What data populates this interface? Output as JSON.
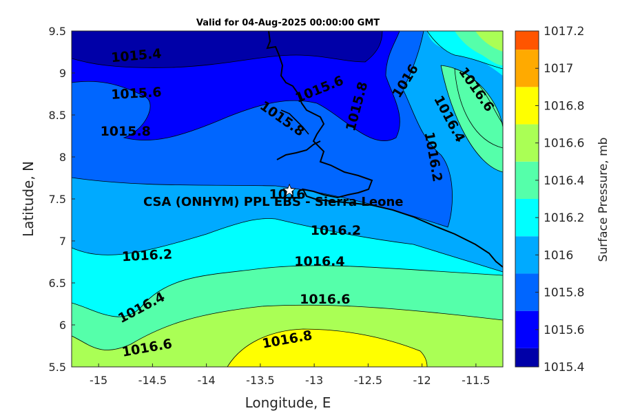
{
  "title": "Valid for 04-Aug-2025 00:00:00 GMT",
  "site_label": "CSA (ONHYM) PPL EBS  - Sierra Leone",
  "chart_data": {
    "type": "heatmap",
    "subtype": "filled-contour-map",
    "xlabel": "Longitude, E",
    "ylabel": "Latitude, N",
    "xlim": [
      -15.25,
      -11.25
    ],
    "ylim": [
      5.5,
      9.5
    ],
    "xticks": [
      -15,
      -14.5,
      -14,
      -13.5,
      -13,
      -12.5,
      -12,
      -11.5
    ],
    "yticks": [
      5.5,
      6,
      6.5,
      7,
      7.5,
      8,
      8.5,
      9,
      9.5
    ],
    "colorbar": {
      "label": "Surface Pressure, mb",
      "ticks": [
        1015.4,
        1015.6,
        1015.8,
        1016,
        1016.2,
        1016.4,
        1016.6,
        1016.8,
        1017,
        1017.2
      ],
      "levels": [
        {
          "min": 1015.4,
          "max": 1015.5,
          "color": "#0000a8"
        },
        {
          "min": 1015.5,
          "max": 1015.7,
          "color": "#0000ff"
        },
        {
          "min": 1015.7,
          "max": 1015.9,
          "color": "#0066ff"
        },
        {
          "min": 1015.9,
          "max": 1016.1,
          "color": "#00aaff"
        },
        {
          "min": 1016.1,
          "max": 1016.3,
          "color": "#00ffff"
        },
        {
          "min": 1016.3,
          "max": 1016.5,
          "color": "#55ffaa"
        },
        {
          "min": 1016.5,
          "max": 1016.7,
          "color": "#aaff55"
        },
        {
          "min": 1016.7,
          "max": 1016.9,
          "color": "#ffff00"
        },
        {
          "min": 1016.9,
          "max": 1017.1,
          "color": "#ffaa00"
        },
        {
          "min": 1017.1,
          "max": 1017.2,
          "color": "#ff5500"
        }
      ]
    },
    "contour_labels": [
      {
        "text": "1015.4",
        "lon": -14.65,
        "lat": 9.2,
        "angle": -5
      },
      {
        "text": "1015.6",
        "lon": -14.65,
        "lat": 8.75,
        "angle": -3
      },
      {
        "text": "1015.8",
        "lon": -14.75,
        "lat": 8.3,
        "angle": 0
      },
      {
        "text": "1015.6",
        "lon": -12.95,
        "lat": 8.8,
        "angle": -22
      },
      {
        "text": "1015.8",
        "lon": -13.3,
        "lat": 8.45,
        "angle": 35
      },
      {
        "text": "1015.8",
        "lon": -12.6,
        "lat": 8.6,
        "angle": -75
      },
      {
        "text": "1016",
        "lon": -12.15,
        "lat": 8.9,
        "angle": -58
      },
      {
        "text": "1016.6",
        "lon": -11.5,
        "lat": 8.8,
        "angle": 55
      },
      {
        "text": "1016.4",
        "lon": -11.75,
        "lat": 8.45,
        "angle": 62
      },
      {
        "text": "1016.2",
        "lon": -11.9,
        "lat": 8.0,
        "angle": 80
      },
      {
        "text": "1016",
        "lon": -13.25,
        "lat": 7.55,
        "angle": 0
      },
      {
        "text": "1016.2",
        "lon": -12.8,
        "lat": 7.12,
        "angle": 0
      },
      {
        "text": "1016.2",
        "lon": -14.55,
        "lat": 6.82,
        "angle": -3
      },
      {
        "text": "1016.4",
        "lon": -12.95,
        "lat": 6.75,
        "angle": 0
      },
      {
        "text": "1016.4",
        "lon": -14.6,
        "lat": 6.2,
        "angle": -28
      },
      {
        "text": "1016.6",
        "lon": -12.9,
        "lat": 6.3,
        "angle": 0
      },
      {
        "text": "1016.6",
        "lon": -14.55,
        "lat": 5.72,
        "angle": -10
      },
      {
        "text": "1016.8",
        "lon": -13.25,
        "lat": 5.82,
        "angle": -10
      }
    ],
    "site": {
      "lon": -13.23,
      "lat": 7.6
    }
  }
}
